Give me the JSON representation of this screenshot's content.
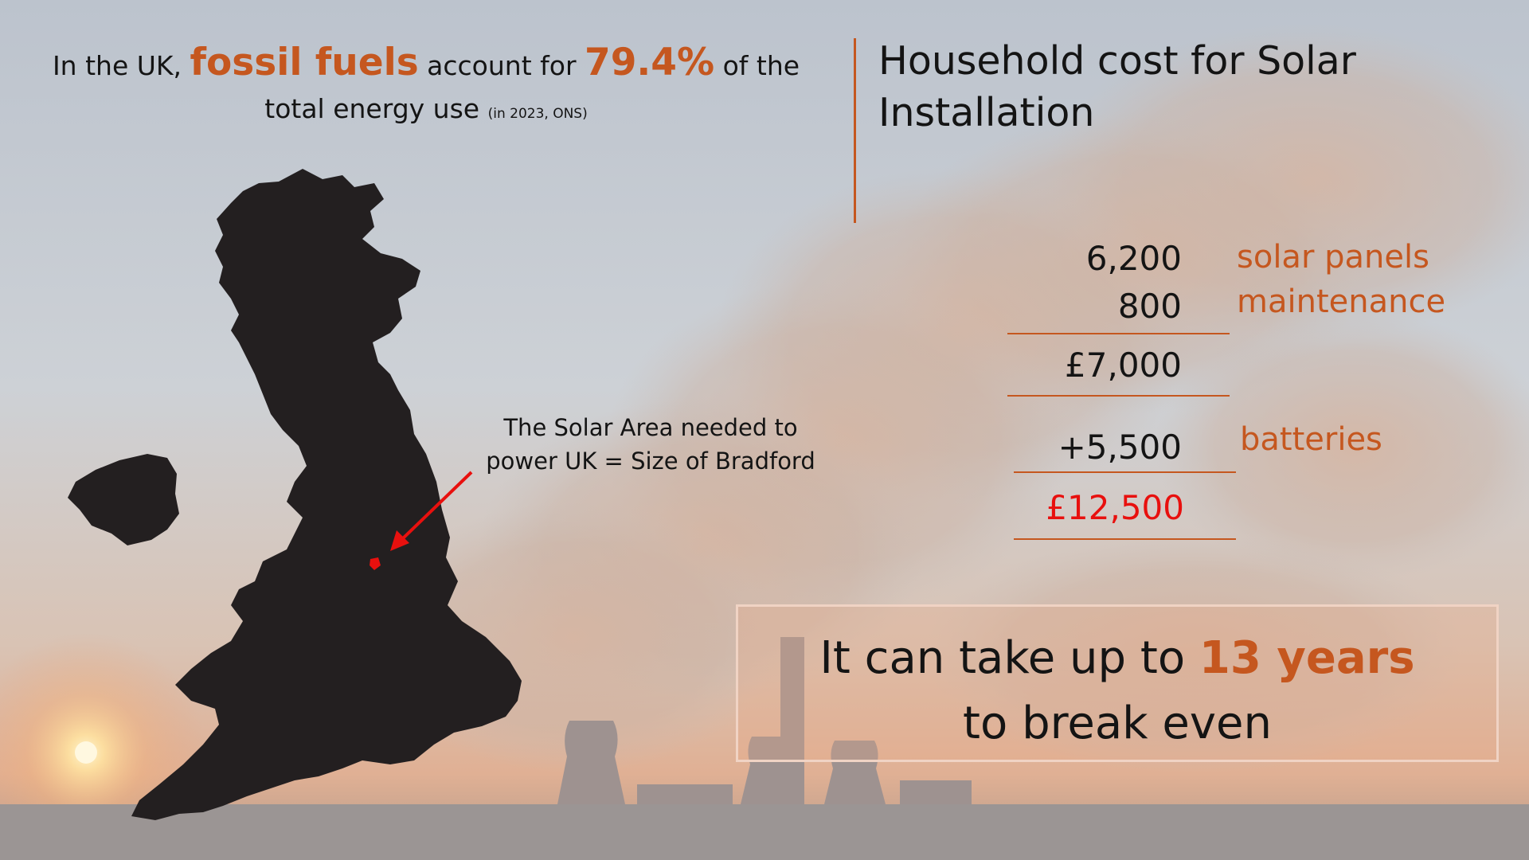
{
  "headline": {
    "prefix": "In the UK,",
    "highlight_1": "fossil fuels",
    "middle": "account for",
    "percentage": "79.4%",
    "suffix": "of the",
    "line2": "total energy use",
    "source": "(in 2023, ONS)"
  },
  "cost": {
    "title": "Household cost for Solar Installation",
    "items": [
      {
        "amount": "6,200",
        "label": "solar panels"
      },
      {
        "amount": "800",
        "label": "maintenance"
      }
    ],
    "subtotal": "£7,000",
    "addon": {
      "amount": "+5,500",
      "label": "batteries"
    },
    "total": "£12,500"
  },
  "map_callout": {
    "line1": "The Solar Area needed to",
    "line2": "power UK = Size of Bradford"
  },
  "breakeven": {
    "prefix": "It can take up to",
    "highlight": "13 years",
    "line2": "to break even"
  },
  "colors": {
    "accent": "#c5571f",
    "total": "#e8100e",
    "text": "#141414",
    "map": "#231f20"
  }
}
